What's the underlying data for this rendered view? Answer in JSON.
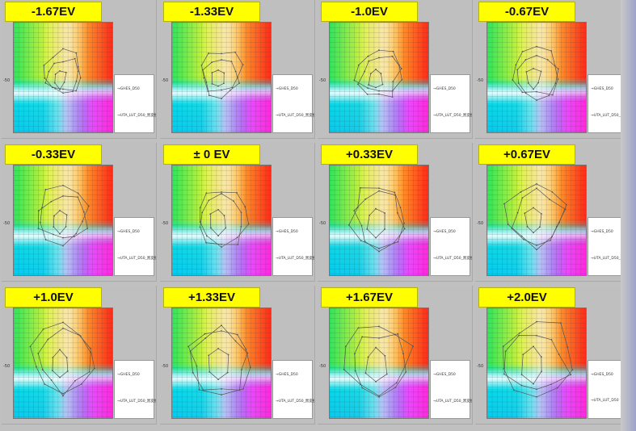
{
  "chart_data": [
    {
      "type": "scatter",
      "title": "-1.67EV",
      "legend": [
        "GHES_D50",
        "UTA_LUT_D50_黒変換"
      ],
      "y_tick": "-50"
    },
    {
      "type": "scatter",
      "title": "-1.33EV",
      "legend": [
        "GHES_D50",
        "UTA_LUT_D50_黒変換"
      ],
      "y_tick": "-50"
    },
    {
      "type": "scatter",
      "title": "-1.0EV",
      "legend": [
        "GHES_D50",
        "UTA_LUT_D50_黒変換"
      ],
      "y_tick": "-50"
    },
    {
      "type": "scatter",
      "title": "-0.67EV",
      "legend": [
        "GHES_D50",
        "UTA_LUT_D50_黒変換"
      ],
      "y_tick": "-50"
    },
    {
      "type": "scatter",
      "title": "-0.33EV",
      "legend": [
        "GHES_D50",
        "UTA_LUT_D50_黒変換"
      ],
      "y_tick": "-50"
    },
    {
      "type": "scatter",
      "title": "± 0 EV",
      "legend": [
        "GHES_D50",
        "UTA_LUT_D50_黒変換"
      ],
      "y_tick": "-50"
    },
    {
      "type": "scatter",
      "title": "+0.33EV",
      "legend": [
        "GHES_D50",
        "UTA_LUT_D50_黒変換"
      ],
      "y_tick": "-50"
    },
    {
      "type": "scatter",
      "title": "+0.67EV",
      "legend": [
        "GHES_D50",
        "UTA_LUT_D50_黒変換"
      ],
      "y_tick": "-50"
    },
    {
      "type": "scatter",
      "title": "+1.0EV",
      "legend": [
        "GHES_D50",
        "UTA_LUT_D50_黒変換"
      ],
      "y_tick": "-50"
    },
    {
      "type": "scatter",
      "title": "+1.33EV",
      "legend": [
        "GHES_D50",
        "UTA_LUT_D50_黒変換"
      ],
      "y_tick": "-50"
    },
    {
      "type": "scatter",
      "title": "+1.67EV",
      "legend": [
        "GHES_D50",
        "UTA_LUT_D50_黒変換"
      ],
      "y_tick": "-50"
    },
    {
      "type": "scatter",
      "title": "+2.0EV",
      "legend": [
        "GHES_D50",
        "UTA_LUT_D50"
      ],
      "y_tick": "-50"
    }
  ],
  "colors": {
    "label_bg": "#ffff00",
    "frame_bg": "#c0c0c0",
    "plot_line": "#555555"
  }
}
